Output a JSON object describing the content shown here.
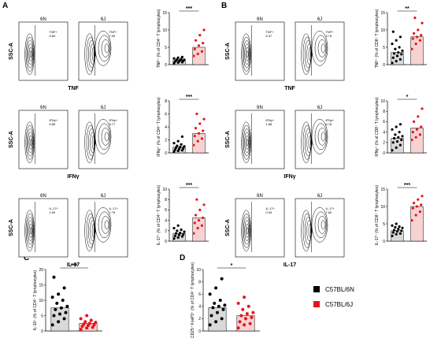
{
  "colors": {
    "bl6n": "#000000",
    "bl6j": "#e8131a",
    "bar6n": "#d9d9d9",
    "bar6j": "#f8d2d2"
  },
  "panel_labels": [
    "A",
    "B",
    "C",
    "D"
  ],
  "flow_rows": {
    "A": [
      {
        "xlabel": "TNF",
        "ylabel": "SSC-A",
        "left_title": "6N",
        "right_title": "6J",
        "left_gate": "TNF+",
        "left_value": "0.84",
        "right_gate": "TNF+",
        "right_value": "7.05"
      },
      {
        "xlabel": "IFNγ",
        "ylabel": "SSC-A",
        "left_title": "6N",
        "right_title": "6J",
        "left_gate": "IFNγ+",
        "left_value": "0.89",
        "right_gate": "IFNγ+",
        "right_value": "3.77"
      },
      {
        "xlabel": "IL-17",
        "ylabel": "SSC-A",
        "left_title": "6N",
        "right_title": "6J",
        "left_gate": "IL-17+",
        "left_value": "1.09",
        "right_gate": "IL-17+",
        "right_value": "7.79"
      }
    ],
    "B": [
      {
        "xlabel": "TNF",
        "ylabel": "SSC-A",
        "left_title": "6N",
        "right_title": "6J",
        "left_gate": "TNF+",
        "left_value": "6.37",
        "right_gate": "TNF+",
        "right_value": "17.8"
      },
      {
        "xlabel": "IFNγ",
        "ylabel": "SSC-A",
        "left_title": "6N",
        "right_title": "6J",
        "left_gate": "IFNγ+",
        "left_value": "1.88",
        "right_gate": "IFNγ+",
        "right_value": "6.76"
      },
      {
        "xlabel": "IL-17",
        "ylabel": "SSC-A",
        "left_title": "6N",
        "right_title": "6J",
        "left_gate": "IL-17+",
        "left_value": "0.93",
        "right_gate": "IL-17+",
        "right_value": "7.60"
      }
    ]
  },
  "chart_data": [
    {
      "id": "A1",
      "type": "bar",
      "categories": [
        "C57BL/6N",
        "C57BL/6J"
      ],
      "ylabel": "TNF⁺ (% of CD4⁺ T lymphocytes)",
      "ylim": [
        0,
        15
      ],
      "yticks": [
        0,
        5,
        10,
        15
      ],
      "sig": "***",
      "means": [
        1.2,
        5.0
      ],
      "points": [
        [
          0.4,
          0.6,
          0.7,
          0.9,
          1.0,
          1.1,
          1.2,
          1.3,
          1.4,
          1.5,
          1.6,
          1.8,
          2.0,
          2.2
        ],
        [
          2.5,
          3.1,
          3.8,
          4.5,
          5.5,
          6.2,
          7.0,
          8.5,
          10.0
        ]
      ]
    },
    {
      "id": "B1",
      "type": "bar",
      "categories": [
        "C57BL/6N",
        "C57BL/6J"
      ],
      "ylabel": "TNF⁺ (% of CD8⁺ T lymphocytes)",
      "ylim": [
        0,
        15
      ],
      "yticks": [
        0,
        5,
        10,
        15
      ],
      "sig": "**",
      "means": [
        3.5,
        8.0
      ],
      "points": [
        [
          0.5,
          1.0,
          1.5,
          2.0,
          2.5,
          3.0,
          3.2,
          3.5,
          4.0,
          4.5,
          5.0,
          6.0,
          7.0,
          8.0,
          9.5
        ],
        [
          4.5,
          6.0,
          7.0,
          7.5,
          8.0,
          8.5,
          9.0,
          10.0,
          12.0,
          13.5
        ]
      ]
    },
    {
      "id": "A2",
      "type": "bar",
      "categories": [
        "C57BL/6N",
        "C57BL/6J"
      ],
      "ylabel": "IFNγ⁺ (% of CD4⁺ T lymphocytes)",
      "ylim": [
        0,
        8
      ],
      "yticks": [
        0,
        2,
        4,
        6,
        8
      ],
      "sig": "***",
      "means": [
        0.9,
        3.0
      ],
      "points": [
        [
          0.2,
          0.3,
          0.4,
          0.5,
          0.6,
          0.7,
          0.8,
          0.9,
          1.0,
          1.1,
          1.3,
          1.5,
          1.8,
          2.5
        ],
        [
          1.2,
          1.8,
          2.2,
          2.6,
          3.0,
          3.4,
          3.8,
          4.5,
          5.2,
          6.0
        ]
      ]
    },
    {
      "id": "B2",
      "type": "bar",
      "categories": [
        "C57BL/6N",
        "C57BL/6J"
      ],
      "ylabel": "IFNγ⁺ (% of CD8⁺ T lymphocytes)",
      "ylim": [
        0,
        10
      ],
      "yticks": [
        0,
        2,
        4,
        6,
        8,
        10
      ],
      "sig": "*",
      "means": [
        2.8,
        4.8
      ],
      "points": [
        [
          0.5,
          1.0,
          1.5,
          2.0,
          2.2,
          2.5,
          2.8,
          3.0,
          3.2,
          3.5,
          4.0,
          4.5,
          5.0,
          5.5
        ],
        [
          2.5,
          3.0,
          3.5,
          4.0,
          4.5,
          5.0,
          6.0,
          7.0,
          8.5
        ]
      ]
    },
    {
      "id": "A3",
      "type": "bar",
      "categories": [
        "C57BL/6N",
        "C57BL/6J"
      ],
      "ylabel": "IL-17⁺ (% of CD4⁺ T lymphocytes)",
      "ylim": [
        0,
        10
      ],
      "yticks": [
        0,
        2,
        4,
        6,
        8,
        10
      ],
      "sig": "***",
      "means": [
        1.5,
        4.5
      ],
      "points": [
        [
          0.5,
          0.7,
          0.9,
          1.0,
          1.2,
          1.3,
          1.5,
          1.6,
          1.8,
          2.0,
          2.2,
          2.5,
          3.0
        ],
        [
          1.5,
          2.5,
          3.0,
          3.5,
          4.0,
          4.5,
          5.0,
          6.0,
          7.0,
          8.0
        ]
      ]
    },
    {
      "id": "B3",
      "type": "bar",
      "categories": [
        "C57BL/6N",
        "C57BL/6J"
      ],
      "ylabel": "IL-17⁺ (% of CD8⁺ T lymphocytes)",
      "ylim": [
        0,
        15
      ],
      "yticks": [
        0,
        5,
        10,
        15
      ],
      "sig": "***",
      "means": [
        3.0,
        10.0
      ],
      "points": [
        [
          1.5,
          2.0,
          2.2,
          2.5,
          2.8,
          3.0,
          3.2,
          3.5,
          3.8,
          4.0,
          4.2,
          4.5,
          5.0
        ],
        [
          6.0,
          7.5,
          8.5,
          9.5,
          10.0,
          10.5,
          11.0,
          12.0,
          13.0
        ]
      ]
    },
    {
      "id": "C",
      "type": "bar",
      "categories": [
        "C57BL/6N",
        "C57BL/6J"
      ],
      "ylabel": "IL-10⁺ (% of CD4⁺ T lymphocytes)",
      "ylim": [
        0,
        20
      ],
      "yticks": [
        0,
        5,
        10,
        15,
        20
      ],
      "sig": "***",
      "means": [
        7.5,
        2.5
      ],
      "points": [
        [
          2.0,
          3.0,
          4.0,
          5.0,
          5.5,
          6.0,
          7.0,
          7.5,
          8.0,
          9.0,
          10.0,
          11.0,
          12.0,
          14.0,
          17.5
        ],
        [
          0.5,
          1.0,
          1.2,
          1.5,
          1.8,
          2.0,
          2.2,
          2.5,
          2.8,
          3.0,
          3.5,
          4.0,
          5.0
        ]
      ]
    },
    {
      "id": "D",
      "type": "bar",
      "categories": [
        "C57BL/6N",
        "C57BL/6J"
      ],
      "ylabel": "CD25⁺ FoxP3⁺ (% of CD4⁺ T lymphocytes)",
      "ylim": [
        0,
        10
      ],
      "yticks": [
        0,
        2,
        4,
        6,
        8,
        10
      ],
      "sig": "*",
      "means": [
        3.8,
        2.5
      ],
      "points": [
        [
          1.0,
          1.5,
          2.0,
          2.5,
          3.0,
          3.5,
          3.8,
          4.0,
          4.2,
          4.5,
          5.0,
          6.0,
          7.0,
          8.5
        ],
        [
          0.5,
          1.0,
          1.2,
          1.5,
          2.0,
          2.2,
          2.5,
          2.8,
          3.0,
          3.5,
          4.0,
          4.5,
          5.5
        ]
      ]
    }
  ],
  "legend": {
    "items": [
      {
        "label": "C57BL/6N"
      },
      {
        "label": "C57BL/6J"
      }
    ]
  }
}
